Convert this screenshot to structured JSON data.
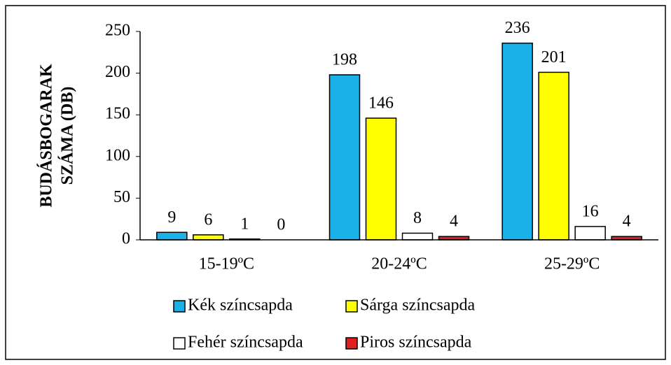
{
  "chart_data": {
    "type": "bar",
    "y_label": [
      "BUDÁSBOGARAK",
      "SZÁMA (DB)"
    ],
    "categories": [
      "15-19ºC",
      "20-24ºC",
      "25-29ºC"
    ],
    "series": [
      {
        "name": "Kék színcsapda",
        "color": "#1ab0e8",
        "values": [
          9,
          198,
          236
        ]
      },
      {
        "name": "Sárga színcsapda",
        "color": "#ffff00",
        "values": [
          6,
          146,
          201
        ]
      },
      {
        "name": "Fehér színcsapda",
        "color": "#ffffff",
        "values": [
          1,
          8,
          16
        ]
      },
      {
        "name": "Piros színcsapda",
        "color": "#e02020",
        "values": [
          0,
          4,
          4
        ]
      }
    ],
    "ylim": [
      0,
      250
    ],
    "yticks": [
      0,
      50,
      100,
      150,
      200,
      250
    ],
    "grid": false,
    "legend": "bottom"
  }
}
